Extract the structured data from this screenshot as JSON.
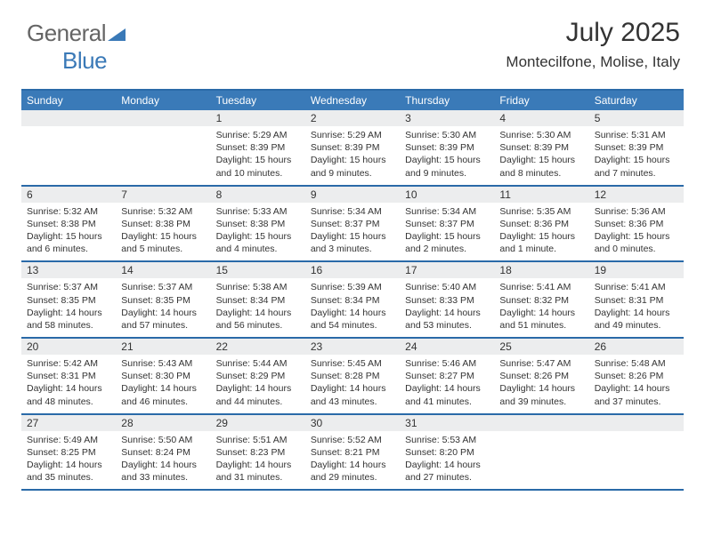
{
  "brand": {
    "general": "General",
    "blue": "Blue"
  },
  "header": {
    "title": "July 2025",
    "subtitle": "Montecilfone, Molise, Italy"
  },
  "colors": {
    "header_bar": "#3a7ab8",
    "rule": "#2a6aa8",
    "daynum_bg": "#ecedee",
    "text": "#333333",
    "logo_gray": "#656565",
    "logo_blue": "#3a79b7"
  },
  "day_labels": [
    "Sunday",
    "Monday",
    "Tuesday",
    "Wednesday",
    "Thursday",
    "Friday",
    "Saturday"
  ],
  "weeks": [
    [
      {
        "n": "",
        "r": "",
        "s": "",
        "d": ""
      },
      {
        "n": "",
        "r": "",
        "s": "",
        "d": ""
      },
      {
        "n": "1",
        "r": "5:29 AM",
        "s": "8:39 PM",
        "d": "15 hours and 10 minutes."
      },
      {
        "n": "2",
        "r": "5:29 AM",
        "s": "8:39 PM",
        "d": "15 hours and 9 minutes."
      },
      {
        "n": "3",
        "r": "5:30 AM",
        "s": "8:39 PM",
        "d": "15 hours and 9 minutes."
      },
      {
        "n": "4",
        "r": "5:30 AM",
        "s": "8:39 PM",
        "d": "15 hours and 8 minutes."
      },
      {
        "n": "5",
        "r": "5:31 AM",
        "s": "8:39 PM",
        "d": "15 hours and 7 minutes."
      }
    ],
    [
      {
        "n": "6",
        "r": "5:32 AM",
        "s": "8:38 PM",
        "d": "15 hours and 6 minutes."
      },
      {
        "n": "7",
        "r": "5:32 AM",
        "s": "8:38 PM",
        "d": "15 hours and 5 minutes."
      },
      {
        "n": "8",
        "r": "5:33 AM",
        "s": "8:38 PM",
        "d": "15 hours and 4 minutes."
      },
      {
        "n": "9",
        "r": "5:34 AM",
        "s": "8:37 PM",
        "d": "15 hours and 3 minutes."
      },
      {
        "n": "10",
        "r": "5:34 AM",
        "s": "8:37 PM",
        "d": "15 hours and 2 minutes."
      },
      {
        "n": "11",
        "r": "5:35 AM",
        "s": "8:36 PM",
        "d": "15 hours and 1 minute."
      },
      {
        "n": "12",
        "r": "5:36 AM",
        "s": "8:36 PM",
        "d": "15 hours and 0 minutes."
      }
    ],
    [
      {
        "n": "13",
        "r": "5:37 AM",
        "s": "8:35 PM",
        "d": "14 hours and 58 minutes."
      },
      {
        "n": "14",
        "r": "5:37 AM",
        "s": "8:35 PM",
        "d": "14 hours and 57 minutes."
      },
      {
        "n": "15",
        "r": "5:38 AM",
        "s": "8:34 PM",
        "d": "14 hours and 56 minutes."
      },
      {
        "n": "16",
        "r": "5:39 AM",
        "s": "8:34 PM",
        "d": "14 hours and 54 minutes."
      },
      {
        "n": "17",
        "r": "5:40 AM",
        "s": "8:33 PM",
        "d": "14 hours and 53 minutes."
      },
      {
        "n": "18",
        "r": "5:41 AM",
        "s": "8:32 PM",
        "d": "14 hours and 51 minutes."
      },
      {
        "n": "19",
        "r": "5:41 AM",
        "s": "8:31 PM",
        "d": "14 hours and 49 minutes."
      }
    ],
    [
      {
        "n": "20",
        "r": "5:42 AM",
        "s": "8:31 PM",
        "d": "14 hours and 48 minutes."
      },
      {
        "n": "21",
        "r": "5:43 AM",
        "s": "8:30 PM",
        "d": "14 hours and 46 minutes."
      },
      {
        "n": "22",
        "r": "5:44 AM",
        "s": "8:29 PM",
        "d": "14 hours and 44 minutes."
      },
      {
        "n": "23",
        "r": "5:45 AM",
        "s": "8:28 PM",
        "d": "14 hours and 43 minutes."
      },
      {
        "n": "24",
        "r": "5:46 AM",
        "s": "8:27 PM",
        "d": "14 hours and 41 minutes."
      },
      {
        "n": "25",
        "r": "5:47 AM",
        "s": "8:26 PM",
        "d": "14 hours and 39 minutes."
      },
      {
        "n": "26",
        "r": "5:48 AM",
        "s": "8:26 PM",
        "d": "14 hours and 37 minutes."
      }
    ],
    [
      {
        "n": "27",
        "r": "5:49 AM",
        "s": "8:25 PM",
        "d": "14 hours and 35 minutes."
      },
      {
        "n": "28",
        "r": "5:50 AM",
        "s": "8:24 PM",
        "d": "14 hours and 33 minutes."
      },
      {
        "n": "29",
        "r": "5:51 AM",
        "s": "8:23 PM",
        "d": "14 hours and 31 minutes."
      },
      {
        "n": "30",
        "r": "5:52 AM",
        "s": "8:21 PM",
        "d": "14 hours and 29 minutes."
      },
      {
        "n": "31",
        "r": "5:53 AM",
        "s": "8:20 PM",
        "d": "14 hours and 27 minutes."
      },
      {
        "n": "",
        "r": "",
        "s": "",
        "d": ""
      },
      {
        "n": "",
        "r": "",
        "s": "",
        "d": ""
      }
    ]
  ],
  "labels": {
    "sunrise": "Sunrise:",
    "sunset": "Sunset:",
    "daylight": "Daylight:"
  }
}
